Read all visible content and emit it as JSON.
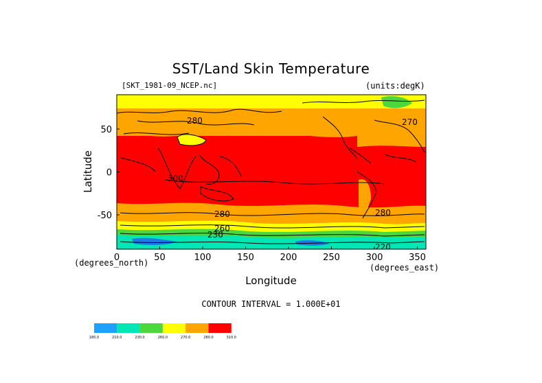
{
  "title": "SST/Land Skin Temperature",
  "filename": "[SKT_1981-09_NCEP.nc]",
  "units": "(units:degK)",
  "x_axis": {
    "label": "Longitude",
    "units": "(degrees_east)",
    "ticks": [
      "0",
      "50",
      "100",
      "150",
      "200",
      "250",
      "300",
      "350"
    ]
  },
  "y_axis": {
    "label": "Latitude",
    "units": "(degrees_north)",
    "ticks": [
      "50",
      "0",
      "-50"
    ]
  },
  "contour_interval": "CONTOUR INTERVAL = 1.000E+01",
  "contour_labels": [
    "280",
    "270",
    "300",
    "280",
    "280",
    "260",
    "230",
    "220"
  ],
  "colorbar": {
    "colors": [
      "#1ea0ff",
      "#00e6b4",
      "#4cd73c",
      "#ffff00",
      "#ffa500",
      "#ff0000"
    ],
    "labels": [
      "180.0",
      "210.0",
      "230.0",
      "260.0",
      "270.0",
      "280.0",
      "310.0"
    ]
  },
  "map_colors": {
    "lt_210": "#1e78e6",
    "210_230": "#00e6b4",
    "230_260": "#4cd73c",
    "260_270": "#ffff00",
    "270_280": "#ffa500",
    "gt_280": "#ff0000"
  }
}
